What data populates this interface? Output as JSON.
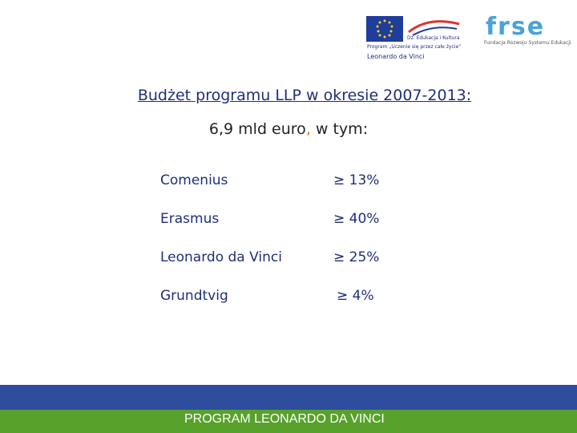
{
  "header": {
    "logos": {
      "program": [
        "Dz. Edukacja i Kultura",
        "Program „Uczenie się przez całe życie”",
        "Leonardo da Vinci"
      ],
      "frse": "frse",
      "frse_name": "Fundacja Rozwoju Systemu Edukacji"
    }
  },
  "title": "Budżet programu LLP w okresie 2007-2013:",
  "subtitle": {
    "amount": "6,9 mld euro",
    "separator": ",",
    "rest": "w tym:"
  },
  "table": {
    "rows": [
      [
        "Comenius",
        "≥ 13%"
      ],
      [
        "Erasmus",
        "≥ 40%"
      ],
      [
        "Leonardo da Vinci",
        "≥ 25%"
      ],
      [
        "Grundtvig",
        "≥ 4%"
      ]
    ]
  },
  "footer": "PROGRAM LEONARDO DA VINCI"
}
